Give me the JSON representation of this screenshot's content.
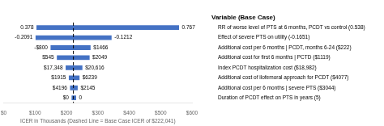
{
  "chart_data": {
    "type": "bar",
    "orientation": "horizontal",
    "title": "Variable (Base Case)",
    "xlabel": "ICER in Thousands (Dashed Line = Base Case ICER of $222,041)",
    "categories": [
      "RR of worse level of PTS at 6 months, PCDT vs control (0.538)",
      "Effect of severe PTS on utility (-0.1651)",
      "Additional cost per 6 months | PCDT, months 6-24 ($222)",
      "Additional cost for first 6 months | PCTD ($1119)",
      "Index PCDT hospitalization cost ($18,982)",
      "Additional cost of ilofemoral approach for PCDT ($4077)",
      "Additional cost per 6 months | severe PTS ($3044)",
      "Duration of PCDT effect on PTS in years (5)"
    ],
    "low": [
      103,
      100,
      148,
      168,
      196,
      206,
      210,
      215
    ],
    "high": [
      560,
      345,
      278,
      275,
      252,
      243,
      237,
      232
    ],
    "low_labels": [
      "0.378",
      "-0.2091",
      "-$800",
      "$545",
      "$17,348",
      "$1915",
      "$4196",
      "$0"
    ],
    "high_labels": [
      "0.767",
      "-0.1212",
      "$1466",
      "$2049",
      "$20,616",
      "$6239",
      "$2145",
      "0"
    ],
    "base_case": 222.041,
    "color": "#4472C4",
    "xlim": [
      0,
      600
    ],
    "xticks": [
      {
        "value": 0,
        "label": "$0"
      },
      {
        "value": 100,
        "label": "$100"
      },
      {
        "value": 200,
        "label": "$200"
      },
      {
        "value": 300,
        "label": "$300"
      },
      {
        "value": 400,
        "label": "$400"
      },
      {
        "value": 500,
        "label": "$500"
      },
      {
        "value": 600,
        "label": "$600"
      }
    ],
    "grid": false
  }
}
